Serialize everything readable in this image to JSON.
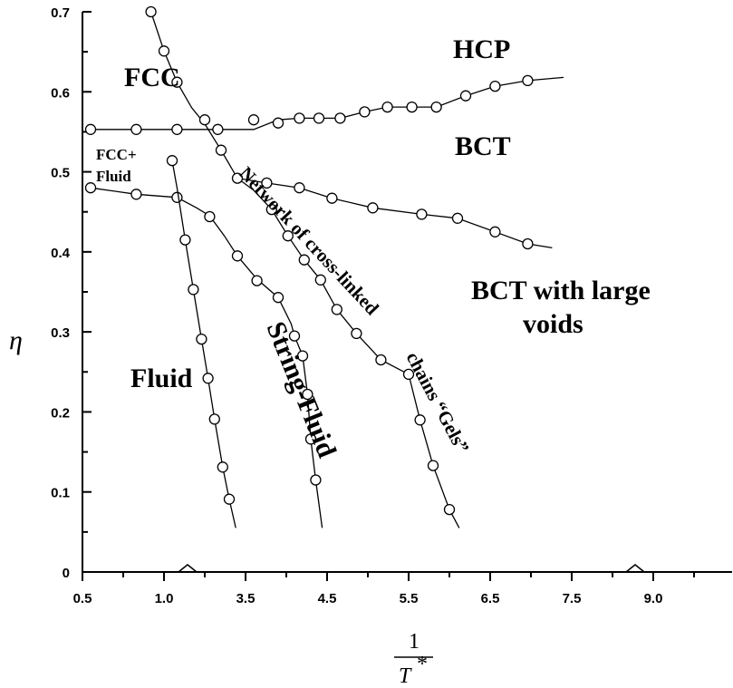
{
  "chart_data": {
    "type": "line",
    "ylabel": "η",
    "xlabel": {
      "numerator": "1",
      "denominator": "T",
      "superscript": "*"
    },
    "ylim": [
      0,
      0.7
    ],
    "y_ticks": [
      "0",
      "0.1",
      "0.2",
      "0.3",
      "0.4",
      "0.5",
      "0.6",
      "0.7"
    ],
    "x_ticks": [
      "0.5",
      "1.0",
      "3.5",
      "4.5",
      "5.5",
      "6.5",
      "7.5",
      "9.0"
    ],
    "x_axis_break": true,
    "grid": false,
    "regions": [
      {
        "id": "fcc",
        "label": "FCC"
      },
      {
        "id": "hcp",
        "label": "HCP"
      },
      {
        "id": "bct",
        "label": "BCT"
      },
      {
        "id": "fcc-fluid",
        "label": "FCC+",
        "label2": "Fluid"
      },
      {
        "id": "network",
        "label": "Network of cross-linked"
      },
      {
        "id": "chains",
        "label": "chains “Gels”"
      },
      {
        "id": "bct-voids",
        "label": "BCT with large",
        "label2": "voids"
      },
      {
        "id": "fluid",
        "label": "Fluid"
      },
      {
        "id": "string-fluid",
        "label": "String-Fluid"
      }
    ],
    "series": [
      {
        "id": "upper-coexistence",
        "points": [
          [
            0.55,
            0.553
          ],
          [
            0.83,
            0.553
          ],
          [
            1.08,
            0.553
          ],
          [
            1.33,
            0.553
          ],
          [
            1.55,
            0.553
          ],
          [
            1.7,
            0.565
          ],
          [
            1.83,
            0.567
          ],
          [
            1.95,
            0.567
          ],
          [
            2.08,
            0.567
          ],
          [
            2.23,
            0.575
          ],
          [
            2.37,
            0.581
          ],
          [
            2.52,
            0.581
          ],
          [
            2.67,
            0.581
          ],
          [
            2.85,
            0.595
          ],
          [
            3.03,
            0.607
          ],
          [
            3.23,
            0.614
          ],
          [
            3.45,
            0.618
          ]
        ],
        "markers": [
          [
            0.55,
            0.553
          ],
          [
            0.83,
            0.553
          ],
          [
            1.08,
            0.553
          ],
          [
            1.33,
            0.553
          ],
          [
            1.55,
            0.565
          ],
          [
            1.7,
            0.561
          ],
          [
            1.83,
            0.567
          ],
          [
            1.95,
            0.567
          ],
          [
            2.08,
            0.567
          ],
          [
            2.23,
            0.575
          ],
          [
            2.37,
            0.581
          ],
          [
            2.52,
            0.581
          ],
          [
            2.67,
            0.581
          ],
          [
            2.85,
            0.595
          ],
          [
            3.03,
            0.607
          ],
          [
            3.23,
            0.614
          ]
        ]
      },
      {
        "id": "fcc-boundary",
        "points": [
          [
            0.92,
            0.7
          ],
          [
            1.0,
            0.651
          ],
          [
            1.08,
            0.612
          ],
          [
            1.17,
            0.58
          ],
          [
            1.25,
            0.56
          ],
          [
            1.35,
            0.527
          ],
          [
            1.45,
            0.492
          ],
          [
            1.55,
            0.477
          ],
          [
            1.66,
            0.453
          ],
          [
            1.76,
            0.42
          ],
          [
            1.86,
            0.39
          ],
          [
            1.96,
            0.365
          ],
          [
            2.06,
            0.328
          ],
          [
            2.18,
            0.298
          ],
          [
            2.33,
            0.265
          ],
          [
            2.5,
            0.247
          ],
          [
            2.57,
            0.19
          ],
          [
            2.65,
            0.133
          ],
          [
            2.75,
            0.078
          ],
          [
            2.81,
            0.055
          ]
        ],
        "markers": [
          [
            0.92,
            0.7
          ],
          [
            1.0,
            0.651
          ],
          [
            1.08,
            0.612
          ],
          [
            1.25,
            0.565
          ],
          [
            1.35,
            0.527
          ],
          [
            1.66,
            0.453
          ],
          [
            1.76,
            0.42
          ],
          [
            1.86,
            0.39
          ],
          [
            1.96,
            0.365
          ],
          [
            2.06,
            0.328
          ],
          [
            2.18,
            0.298
          ],
          [
            2.33,
            0.265
          ],
          [
            2.5,
            0.247
          ],
          [
            2.57,
            0.19
          ],
          [
            2.65,
            0.133
          ],
          [
            2.75,
            0.078
          ]
        ]
      },
      {
        "id": "bct-network-boundary",
        "points": [
          [
            1.45,
            0.492
          ],
          [
            1.63,
            0.486
          ],
          [
            1.83,
            0.48
          ],
          [
            2.03,
            0.467
          ],
          [
            2.28,
            0.455
          ],
          [
            2.58,
            0.447
          ],
          [
            2.8,
            0.442
          ],
          [
            3.03,
            0.425
          ],
          [
            3.23,
            0.41
          ],
          [
            3.38,
            0.405
          ]
        ],
        "markers": [
          [
            1.45,
            0.492
          ],
          [
            1.63,
            0.486
          ],
          [
            1.83,
            0.48
          ],
          [
            2.03,
            0.467
          ],
          [
            2.28,
            0.455
          ],
          [
            2.58,
            0.447
          ],
          [
            2.8,
            0.442
          ],
          [
            3.03,
            0.425
          ],
          [
            3.23,
            0.41
          ]
        ]
      },
      {
        "id": "fluid-solid-boundary",
        "points": [
          [
            0.55,
            0.48
          ],
          [
            0.83,
            0.472
          ],
          [
            1.08,
            0.468
          ],
          [
            1.2,
            0.455
          ],
          [
            1.28,
            0.445
          ],
          [
            1.37,
            0.42
          ],
          [
            1.45,
            0.395
          ],
          [
            1.57,
            0.366
          ],
          [
            1.7,
            0.343
          ],
          [
            1.78,
            0.31
          ],
          [
            1.8,
            0.295
          ],
          [
            1.85,
            0.27
          ],
          [
            1.88,
            0.222
          ],
          [
            1.9,
            0.166
          ],
          [
            1.93,
            0.115
          ],
          [
            1.97,
            0.055
          ]
        ],
        "markers": [
          [
            0.55,
            0.48
          ],
          [
            0.83,
            0.472
          ],
          [
            1.08,
            0.468
          ],
          [
            1.28,
            0.444
          ],
          [
            1.45,
            0.395
          ],
          [
            1.57,
            0.364
          ],
          [
            1.7,
            0.343
          ],
          [
            1.8,
            0.295
          ],
          [
            1.85,
            0.27
          ],
          [
            1.88,
            0.222
          ],
          [
            1.9,
            0.166
          ],
          [
            1.93,
            0.115
          ]
        ]
      },
      {
        "id": "fluid-string-boundary",
        "points": [
          [
            1.05,
            0.514
          ],
          [
            1.08,
            0.48
          ],
          [
            1.13,
            0.415
          ],
          [
            1.18,
            0.353
          ],
          [
            1.23,
            0.291
          ],
          [
            1.27,
            0.242
          ],
          [
            1.31,
            0.191
          ],
          [
            1.36,
            0.131
          ],
          [
            1.4,
            0.091
          ],
          [
            1.44,
            0.055
          ]
        ],
        "markers": [
          [
            1.05,
            0.514
          ],
          [
            1.13,
            0.415
          ],
          [
            1.18,
            0.353
          ],
          [
            1.23,
            0.291
          ],
          [
            1.27,
            0.242
          ],
          [
            1.31,
            0.191
          ],
          [
            1.36,
            0.131
          ],
          [
            1.4,
            0.091
          ]
        ]
      }
    ]
  }
}
